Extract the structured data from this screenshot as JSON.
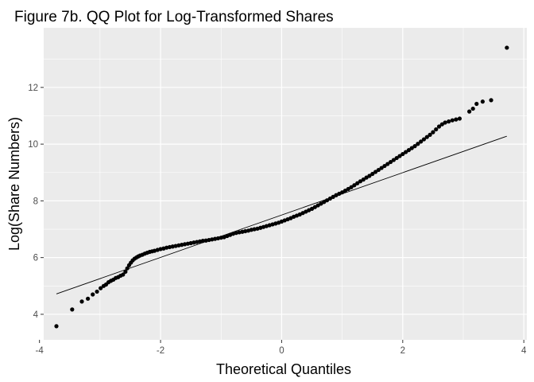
{
  "chart_data": {
    "type": "scatter",
    "title": "Figure 7b. QQ Plot for Log-Transformed Shares",
    "xlabel": "Theoretical Quantiles",
    "ylabel": "Log(Share Numbers)",
    "xlim": [
      -3.93,
      4.05
    ],
    "ylim": [
      3.1,
      14.1
    ],
    "x_ticks": [
      -4,
      -2,
      0,
      2,
      4
    ],
    "y_ticks": [
      4,
      6,
      8,
      10,
      12
    ],
    "x_tick_labels": [
      "-4",
      "-2",
      "0",
      "2",
      "4"
    ],
    "y_tick_labels": [
      "4",
      "6",
      "8",
      "10",
      "12"
    ],
    "grid": true,
    "background": "#ebebeb",
    "grid_color": "#ffffff",
    "point_color": "#000000",
    "reference_line": {
      "x": [
        -3.72,
        3.72
      ],
      "y": [
        4.72,
        10.28
      ]
    },
    "series": [
      {
        "points": [
          [
            -3.72,
            3.58
          ],
          [
            -3.46,
            4.17
          ],
          [
            -3.3,
            4.45
          ],
          [
            -3.2,
            4.55
          ],
          [
            -3.12,
            4.7
          ],
          [
            -3.05,
            4.8
          ],
          [
            -2.99,
            4.92
          ],
          [
            -2.94,
            5.0
          ],
          [
            -2.9,
            5.05
          ],
          [
            -2.86,
            5.13
          ],
          [
            -2.82,
            5.18
          ],
          [
            -2.78,
            5.22
          ],
          [
            -2.74,
            5.28
          ],
          [
            -2.7,
            5.31
          ],
          [
            -2.66,
            5.36
          ],
          [
            -2.62,
            5.4
          ],
          [
            -2.58,
            5.5
          ],
          [
            -2.55,
            5.62
          ],
          [
            -2.52,
            5.73
          ],
          [
            -2.49,
            5.82
          ],
          [
            -2.46,
            5.9
          ],
          [
            -2.43,
            5.96
          ],
          [
            -2.4,
            6.0
          ],
          [
            -2.37,
            6.04
          ],
          [
            -2.34,
            6.07
          ],
          [
            -2.3,
            6.1
          ],
          [
            -2.26,
            6.14
          ],
          [
            -2.22,
            6.17
          ],
          [
            -2.18,
            6.2
          ],
          [
            -2.14,
            6.22
          ],
          [
            -2.1,
            6.24
          ],
          [
            -2.05,
            6.27
          ],
          [
            -2.0,
            6.3
          ],
          [
            -1.95,
            6.32
          ],
          [
            -1.9,
            6.35
          ],
          [
            -1.85,
            6.37
          ],
          [
            -1.8,
            6.39
          ],
          [
            -1.75,
            6.41
          ],
          [
            -1.7,
            6.43
          ],
          [
            -1.65,
            6.45
          ],
          [
            -1.6,
            6.47
          ],
          [
            -1.55,
            6.49
          ],
          [
            -1.5,
            6.51
          ],
          [
            -1.45,
            6.53
          ],
          [
            -1.4,
            6.55
          ],
          [
            -1.35,
            6.57
          ],
          [
            -1.3,
            6.59
          ],
          [
            -1.25,
            6.6
          ],
          [
            -1.2,
            6.62
          ],
          [
            -1.15,
            6.64
          ],
          [
            -1.1,
            6.66
          ],
          [
            -1.05,
            6.68
          ],
          [
            -1.0,
            6.7
          ],
          [
            -0.95,
            6.72
          ],
          [
            -0.9,
            6.76
          ],
          [
            -0.85,
            6.8
          ],
          [
            -0.8,
            6.84
          ],
          [
            -0.75,
            6.87
          ],
          [
            -0.7,
            6.89
          ],
          [
            -0.65,
            6.91
          ],
          [
            -0.6,
            6.93
          ],
          [
            -0.55,
            6.95
          ],
          [
            -0.5,
            6.98
          ],
          [
            -0.45,
            7.0
          ],
          [
            -0.4,
            7.02
          ],
          [
            -0.35,
            7.05
          ],
          [
            -0.3,
            7.08
          ],
          [
            -0.25,
            7.11
          ],
          [
            -0.2,
            7.14
          ],
          [
            -0.15,
            7.17
          ],
          [
            -0.1,
            7.2
          ],
          [
            -0.05,
            7.23
          ],
          [
            0.0,
            7.27
          ],
          [
            0.05,
            7.31
          ],
          [
            0.1,
            7.35
          ],
          [
            0.15,
            7.39
          ],
          [
            0.2,
            7.44
          ],
          [
            0.25,
            7.48
          ],
          [
            0.3,
            7.52
          ],
          [
            0.35,
            7.57
          ],
          [
            0.4,
            7.62
          ],
          [
            0.45,
            7.67
          ],
          [
            0.5,
            7.72
          ],
          [
            0.55,
            7.78
          ],
          [
            0.6,
            7.84
          ],
          [
            0.65,
            7.9
          ],
          [
            0.7,
            7.96
          ],
          [
            0.75,
            8.02
          ],
          [
            0.8,
            8.08
          ],
          [
            0.85,
            8.14
          ],
          [
            0.9,
            8.2
          ],
          [
            0.95,
            8.25
          ],
          [
            1.0,
            8.3
          ],
          [
            1.05,
            8.36
          ],
          [
            1.1,
            8.42
          ],
          [
            1.15,
            8.48
          ],
          [
            1.2,
            8.55
          ],
          [
            1.25,
            8.62
          ],
          [
            1.3,
            8.69
          ],
          [
            1.35,
            8.75
          ],
          [
            1.4,
            8.82
          ],
          [
            1.45,
            8.88
          ],
          [
            1.5,
            8.95
          ],
          [
            1.55,
            9.02
          ],
          [
            1.6,
            9.09
          ],
          [
            1.65,
            9.16
          ],
          [
            1.7,
            9.23
          ],
          [
            1.75,
            9.3
          ],
          [
            1.8,
            9.37
          ],
          [
            1.85,
            9.44
          ],
          [
            1.9,
            9.51
          ],
          [
            1.95,
            9.58
          ],
          [
            2.0,
            9.65
          ],
          [
            2.05,
            9.72
          ],
          [
            2.1,
            9.79
          ],
          [
            2.15,
            9.86
          ],
          [
            2.2,
            9.93
          ],
          [
            2.25,
            10.01
          ],
          [
            2.3,
            10.09
          ],
          [
            2.35,
            10.17
          ],
          [
            2.4,
            10.25
          ],
          [
            2.45,
            10.33
          ],
          [
            2.5,
            10.42
          ],
          [
            2.55,
            10.52
          ],
          [
            2.6,
            10.62
          ],
          [
            2.65,
            10.7
          ],
          [
            2.7,
            10.76
          ],
          [
            2.76,
            10.8
          ],
          [
            2.82,
            10.84
          ],
          [
            2.88,
            10.87
          ],
          [
            2.94,
            10.9
          ],
          [
            3.1,
            11.15
          ],
          [
            3.16,
            11.25
          ],
          [
            3.22,
            11.42
          ],
          [
            3.32,
            11.5
          ],
          [
            3.46,
            11.55
          ],
          [
            3.72,
            13.4
          ]
        ]
      }
    ]
  }
}
